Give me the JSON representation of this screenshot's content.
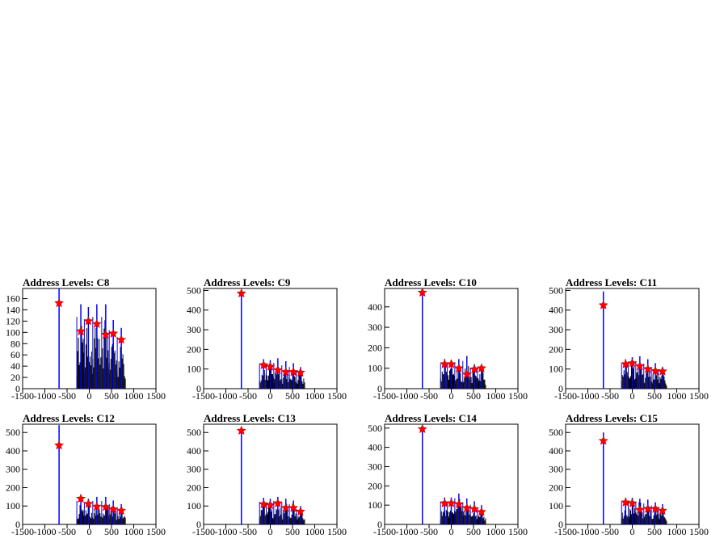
{
  "chart_data": [
    {
      "type": "histogram",
      "title": "Address Levels: C8",
      "xlim": [
        -1500,
        1500
      ],
      "ylim": [
        0,
        178
      ],
      "xticks": [
        -1500,
        -1000,
        -500,
        0,
        500,
        1000,
        1500
      ],
      "yticks": [
        0,
        20,
        40,
        60,
        80,
        100,
        120,
        140,
        160
      ],
      "peaks": [
        {
          "x": -680,
          "y": 178
        },
        {
          "x": -190,
          "y": 150
        },
        {
          "x": -20,
          "y": 145
        },
        {
          "x": 170,
          "y": 150
        },
        {
          "x": 370,
          "y": 150
        },
        {
          "x": 540,
          "y": 122
        },
        {
          "x": 720,
          "y": 108
        }
      ],
      "markers": [
        {
          "x": -680,
          "y": 152
        },
        {
          "x": -190,
          "y": 102
        },
        {
          "x": -20,
          "y": 120
        },
        {
          "x": 170,
          "y": 115
        },
        {
          "x": 370,
          "y": 96
        },
        {
          "x": 540,
          "y": 98
        },
        {
          "x": 720,
          "y": 87
        }
      ]
    },
    {
      "type": "histogram",
      "title": "Address Levels: C9",
      "xlim": [
        -1500,
        1500
      ],
      "ylim": [
        0,
        510
      ],
      "xticks": [
        -1500,
        -1000,
        -500,
        0,
        500,
        1000,
        1500
      ],
      "yticks": [
        0,
        100,
        200,
        300,
        400,
        500
      ],
      "peaks": [
        {
          "x": -650,
          "y": 500
        },
        {
          "x": -150,
          "y": 150
        },
        {
          "x": 0,
          "y": 145
        },
        {
          "x": 170,
          "y": 155
        },
        {
          "x": 350,
          "y": 140
        },
        {
          "x": 520,
          "y": 130
        },
        {
          "x": 680,
          "y": 110
        }
      ],
      "markers": [
        {
          "x": -650,
          "y": 485
        },
        {
          "x": -150,
          "y": 120
        },
        {
          "x": 0,
          "y": 112
        },
        {
          "x": 170,
          "y": 95
        },
        {
          "x": 350,
          "y": 85
        },
        {
          "x": 520,
          "y": 85
        },
        {
          "x": 680,
          "y": 82
        }
      ]
    },
    {
      "type": "histogram",
      "title": "Address Levels: C10",
      "xlim": [
        -1500,
        1500
      ],
      "ylim": [
        0,
        490
      ],
      "xticks": [
        -1500,
        -1000,
        -500,
        0,
        500,
        1000,
        1500
      ],
      "yticks": [
        0,
        100,
        200,
        300,
        400
      ],
      "peaks": [
        {
          "x": -650,
          "y": 485
        },
        {
          "x": -150,
          "y": 145
        },
        {
          "x": 0,
          "y": 140
        },
        {
          "x": 170,
          "y": 145
        },
        {
          "x": 350,
          "y": 160
        },
        {
          "x": 520,
          "y": 120
        },
        {
          "x": 680,
          "y": 115
        }
      ],
      "markers": [
        {
          "x": -650,
          "y": 470
        },
        {
          "x": -150,
          "y": 120
        },
        {
          "x": 0,
          "y": 120
        },
        {
          "x": 170,
          "y": 100
        },
        {
          "x": 350,
          "y": 70
        },
        {
          "x": 520,
          "y": 95
        },
        {
          "x": 680,
          "y": 100
        }
      ]
    },
    {
      "type": "histogram",
      "title": "Address Levels: C11",
      "xlim": [
        -1500,
        1500
      ],
      "ylim": [
        0,
        510
      ],
      "xticks": [
        -1500,
        -1000,
        -500,
        0,
        500,
        1000,
        1500
      ],
      "yticks": [
        0,
        100,
        200,
        300,
        400,
        500
      ],
      "peaks": [
        {
          "x": -650,
          "y": 495
        },
        {
          "x": -150,
          "y": 150
        },
        {
          "x": 0,
          "y": 160
        },
        {
          "x": 170,
          "y": 165
        },
        {
          "x": 350,
          "y": 150
        },
        {
          "x": 520,
          "y": 130
        },
        {
          "x": 680,
          "y": 110
        }
      ],
      "markers": [
        {
          "x": -650,
          "y": 425
        },
        {
          "x": -150,
          "y": 125
        },
        {
          "x": 0,
          "y": 130
        },
        {
          "x": 170,
          "y": 115
        },
        {
          "x": 350,
          "y": 100
        },
        {
          "x": 520,
          "y": 90
        },
        {
          "x": 680,
          "y": 88
        }
      ]
    },
    {
      "type": "histogram",
      "title": "Address Levels: C12",
      "xlim": [
        -1500,
        1500
      ],
      "ylim": [
        0,
        545
      ],
      "xticks": [
        -1500,
        -1000,
        -500,
        0,
        500,
        1000,
        1500
      ],
      "yticks": [
        0,
        100,
        200,
        300,
        400,
        500
      ],
      "peaks": [
        {
          "x": -680,
          "y": 540
        },
        {
          "x": -190,
          "y": 150
        },
        {
          "x": -20,
          "y": 140
        },
        {
          "x": 170,
          "y": 150
        },
        {
          "x": 370,
          "y": 150
        },
        {
          "x": 540,
          "y": 130
        },
        {
          "x": 720,
          "y": 110
        }
      ],
      "markers": [
        {
          "x": -680,
          "y": 430
        },
        {
          "x": -190,
          "y": 140
        },
        {
          "x": -20,
          "y": 112
        },
        {
          "x": 170,
          "y": 97
        },
        {
          "x": 370,
          "y": 95
        },
        {
          "x": 540,
          "y": 82
        },
        {
          "x": 720,
          "y": 75
        }
      ]
    },
    {
      "type": "histogram",
      "title": "Address Levels: C13",
      "xlim": [
        -1500,
        1500
      ],
      "ylim": [
        0,
        545
      ],
      "xticks": [
        -1500,
        -1000,
        -500,
        0,
        500,
        1000,
        1500
      ],
      "yticks": [
        0,
        100,
        200,
        300,
        400,
        500
      ],
      "peaks": [
        {
          "x": -650,
          "y": 520
        },
        {
          "x": -150,
          "y": 145
        },
        {
          "x": 0,
          "y": 140
        },
        {
          "x": 170,
          "y": 150
        },
        {
          "x": 350,
          "y": 140
        },
        {
          "x": 520,
          "y": 130
        },
        {
          "x": 680,
          "y": 100
        }
      ],
      "markers": [
        {
          "x": -650,
          "y": 510
        },
        {
          "x": -150,
          "y": 110
        },
        {
          "x": 0,
          "y": 105
        },
        {
          "x": 170,
          "y": 115
        },
        {
          "x": 350,
          "y": 90
        },
        {
          "x": 520,
          "y": 90
        },
        {
          "x": 680,
          "y": 70
        }
      ]
    },
    {
      "type": "histogram",
      "title": "Address Levels: C14",
      "xlim": [
        -1500,
        1500
      ],
      "ylim": [
        0,
        520
      ],
      "xticks": [
        -1500,
        -1000,
        -500,
        0,
        500,
        1000,
        1500
      ],
      "yticks": [
        0,
        100,
        200,
        300,
        400,
        500
      ],
      "peaks": [
        {
          "x": -650,
          "y": 510
        },
        {
          "x": -150,
          "y": 140
        },
        {
          "x": 0,
          "y": 140
        },
        {
          "x": 170,
          "y": 160
        },
        {
          "x": 350,
          "y": 135
        },
        {
          "x": 520,
          "y": 120
        },
        {
          "x": 680,
          "y": 100
        }
      ],
      "markers": [
        {
          "x": -650,
          "y": 495
        },
        {
          "x": -150,
          "y": 110
        },
        {
          "x": 0,
          "y": 110
        },
        {
          "x": 170,
          "y": 105
        },
        {
          "x": 350,
          "y": 85
        },
        {
          "x": 520,
          "y": 80
        },
        {
          "x": 680,
          "y": 65
        }
      ]
    },
    {
      "type": "histogram",
      "title": "Address Levels: C15",
      "xlim": [
        -1500,
        1500
      ],
      "ylim": [
        0,
        545
      ],
      "xticks": [
        -1500,
        -1000,
        -500,
        0,
        500,
        1000,
        1500
      ],
      "yticks": [
        0,
        100,
        200,
        300,
        400,
        500
      ],
      "peaks": [
        {
          "x": -650,
          "y": 500
        },
        {
          "x": -150,
          "y": 145
        },
        {
          "x": 0,
          "y": 145
        },
        {
          "x": 170,
          "y": 140
        },
        {
          "x": 350,
          "y": 135
        },
        {
          "x": 520,
          "y": 120
        },
        {
          "x": 680,
          "y": 110
        }
      ],
      "markers": [
        {
          "x": -650,
          "y": 455
        },
        {
          "x": -150,
          "y": 120
        },
        {
          "x": 0,
          "y": 115
        },
        {
          "x": 170,
          "y": 80
        },
        {
          "x": 350,
          "y": 85
        },
        {
          "x": 520,
          "y": 85
        },
        {
          "x": 680,
          "y": 75
        }
      ]
    }
  ]
}
